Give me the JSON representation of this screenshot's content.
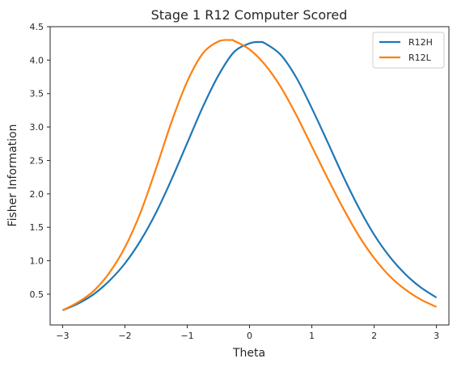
{
  "chart_data": {
    "type": "line",
    "title": "Stage 1 R12 Computer Scored",
    "xlabel": "Theta",
    "ylabel": "Fisher Information",
    "xlim": [
      -3.2,
      3.2
    ],
    "ylim": [
      0.04,
      4.5
    ],
    "xticks": [
      -3,
      -2,
      -1,
      0,
      1,
      2,
      3
    ],
    "xtick_labels": [
      "−3",
      "−2",
      "−1",
      "0",
      "1",
      "2",
      "3"
    ],
    "yticks": [
      0.5,
      1.0,
      1.5,
      2.0,
      2.5,
      3.0,
      3.5,
      4.0,
      4.5
    ],
    "ytick_labels": [
      "0.5",
      "1.0",
      "1.5",
      "2.0",
      "2.5",
      "3.0",
      "3.5",
      "4.0",
      "4.5"
    ],
    "grid": false,
    "legend": "top-right",
    "series": [
      {
        "name": "R12H",
        "color": "#1f77b4",
        "x": [
          -3.0,
          -2.75,
          -2.5,
          -2.25,
          -2.0,
          -1.75,
          -1.5,
          -1.25,
          -1.0,
          -0.75,
          -0.5,
          -0.25,
          0.0,
          0.15,
          0.25,
          0.5,
          0.75,
          1.0,
          1.25,
          1.5,
          1.75,
          2.0,
          2.25,
          2.5,
          2.75,
          3.0
        ],
        "y": [
          0.26,
          0.36,
          0.5,
          0.7,
          0.96,
          1.3,
          1.72,
          2.22,
          2.76,
          3.3,
          3.77,
          4.12,
          4.25,
          4.27,
          4.25,
          4.08,
          3.74,
          3.28,
          2.78,
          2.27,
          1.8,
          1.39,
          1.06,
          0.8,
          0.6,
          0.45
        ]
      },
      {
        "name": "R12L",
        "color": "#ff7f0e",
        "x": [
          -3.0,
          -2.75,
          -2.5,
          -2.25,
          -2.0,
          -1.75,
          -1.5,
          -1.25,
          -1.0,
          -0.75,
          -0.5,
          -0.3,
          -0.25,
          0.0,
          0.25,
          0.5,
          0.75,
          1.0,
          1.25,
          1.5,
          1.75,
          2.0,
          2.25,
          2.5,
          2.75,
          3.0
        ],
        "y": [
          0.26,
          0.38,
          0.55,
          0.82,
          1.2,
          1.72,
          2.38,
          3.08,
          3.68,
          4.1,
          4.28,
          4.3,
          4.29,
          4.16,
          3.93,
          3.6,
          3.18,
          2.71,
          2.24,
          1.79,
          1.38,
          1.04,
          0.77,
          0.57,
          0.42,
          0.31
        ]
      }
    ]
  }
}
